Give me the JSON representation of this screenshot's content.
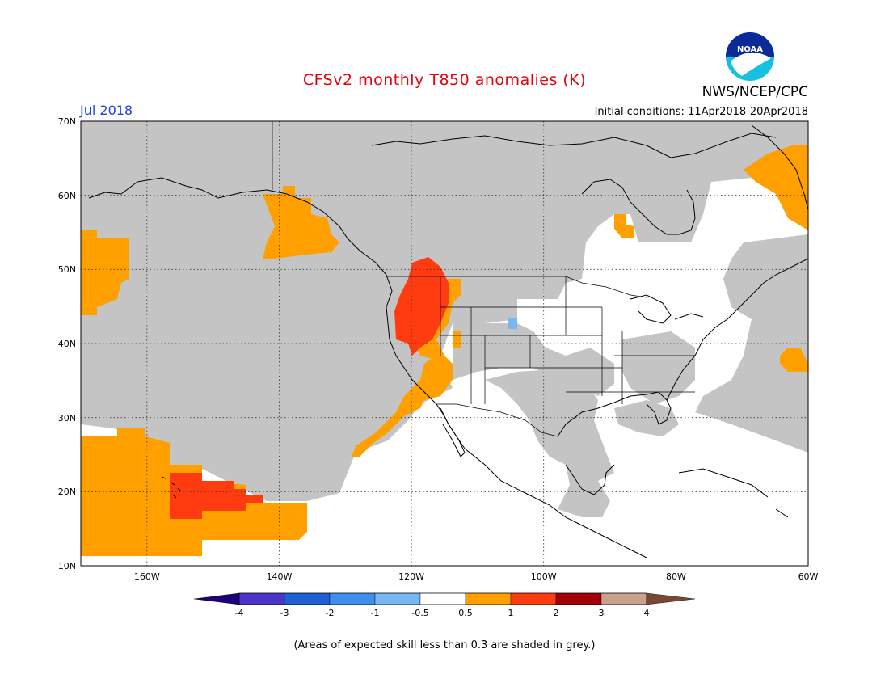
{
  "header": {
    "title": "CFSv2 monthly T850 anomalies (K)",
    "month": "Jul 2018",
    "initial_conditions": "Initial conditions: 11Apr2018-20Apr2018",
    "org": "NWS/NCEP/CPC"
  },
  "logo": {
    "text": "NOAA",
    "icon": "noaa-logo-icon"
  },
  "map": {
    "lat_labels": [
      "70N",
      "60N",
      "50N",
      "40N",
      "30N",
      "20N",
      "10N"
    ],
    "lon_labels": [
      "160W",
      "140W",
      "120W",
      "100W",
      "80W",
      "60W"
    ],
    "lat_range": [
      10,
      70
    ],
    "lon_range": [
      -170,
      -60
    ],
    "grid": true
  },
  "legend": {
    "ticks": [
      "-4",
      "-3",
      "-2",
      "-1",
      "-0.5",
      "0.5",
      "1",
      "2",
      "3",
      "4"
    ],
    "colors": [
      "#1b007a",
      "#4b35c9",
      "#1f60d4",
      "#3d8fea",
      "#78b8f2",
      "#ffffff",
      "#ff9f00",
      "#ff3c10",
      "#a3000a",
      "#c8a08c",
      "#7b4636"
    ]
  },
  "colors": {
    "grey": "#c4c4c4",
    "orange": "#ff9f00",
    "red_orange": "#ff3c10",
    "light_blue": "#78b8f2"
  },
  "footer": {
    "note": "(Areas of expected skill less than 0.3 are shaded in grey.)"
  }
}
